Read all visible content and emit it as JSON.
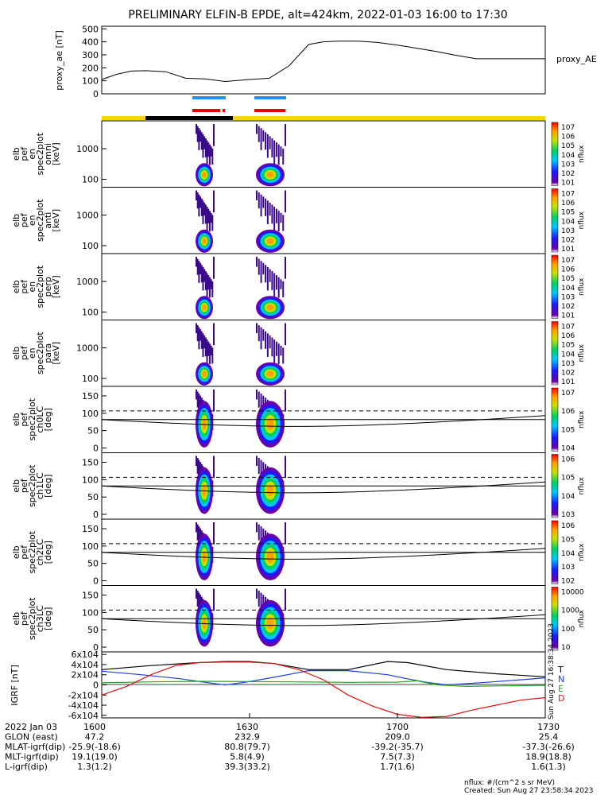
{
  "title": "PRELIMINARY ELFIN-B EPDE, alt=424km, 2022-01-03 16:00 to 17:30",
  "colors": {
    "bar_blue": "#1e90ff",
    "bar_red": "#ee0000",
    "sun_yellow": "#ffd400",
    "shadow_black": "#000000",
    "n_blue": "#1f3fd8",
    "e_green": "#22aa22",
    "d_red": "#dd1111",
    "t_black": "#000000"
  },
  "chart_data": [
    {
      "type": "line",
      "name": "proxy_ae",
      "ylabel": "proxy_ae [nT]",
      "legend": "proxy_AE",
      "yticks": [
        "500",
        "400",
        "300",
        "200",
        "100",
        "0"
      ],
      "ylim": [
        0,
        520
      ],
      "xlim_min": [
        0,
        90
      ],
      "x": [
        0,
        3,
        6,
        9,
        13,
        17,
        21,
        25,
        30,
        34,
        38,
        42,
        45,
        48,
        52,
        56,
        60,
        64,
        68,
        72,
        76,
        80,
        84,
        88,
        90
      ],
      "y": [
        110,
        150,
        175,
        178,
        170,
        120,
        115,
        95,
        110,
        120,
        215,
        380,
        400,
        405,
        405,
        395,
        375,
        350,
        325,
        295,
        270,
        270,
        270,
        270,
        270
      ]
    },
    {
      "type": "heatmap",
      "name": "energy spectrograms",
      "panels": [
        {
          "label": "elb pef en spec2plot omni [keV]",
          "yticks": [
            "1000",
            "100"
          ],
          "cbar_ticks": [
            "10^7",
            "10^6",
            "10^5",
            "10^4",
            "10^3",
            "10^2",
            "10^1"
          ],
          "cbar_label": "nflux"
        },
        {
          "label": "elb pef en spec2plot anti [keV]",
          "yticks": [
            "1000",
            "100"
          ],
          "cbar_ticks": [
            "10^7",
            "10^6",
            "10^5",
            "10^4",
            "10^3",
            "10^2",
            "10^1"
          ],
          "cbar_label": "nflux"
        },
        {
          "label": "elb pef en spec2plot perp [keV]",
          "yticks": [
            "1000",
            "100"
          ],
          "cbar_ticks": [
            "10^7",
            "10^6",
            "10^5",
            "10^4",
            "10^3",
            "10^2",
            "10^1"
          ],
          "cbar_label": "nflux"
        },
        {
          "label": "elb pef en spec2plot para [keV]",
          "yticks": [
            "1000",
            "100"
          ],
          "cbar_ticks": [
            "10^7",
            "10^6",
            "10^5",
            "10^4",
            "10^3",
            "10^2",
            "10^1"
          ],
          "cbar_label": "nflux"
        }
      ]
    },
    {
      "type": "heatmap",
      "name": "pitch-angle spectrograms",
      "panels": [
        {
          "label": "elb pef spec2plot ch0LC [deg]",
          "yticks": [
            "150",
            "100",
            "50",
            "0"
          ],
          "cbar_ticks": [
            "10^7",
            "10^6",
            "10^5",
            "10^4"
          ],
          "cbar_label": "nflux"
        },
        {
          "label": "elb pef spec2plot ch1LC [deg]",
          "yticks": [
            "150",
            "100",
            "50",
            "0"
          ],
          "cbar_ticks": [
            "10^6",
            "10^5",
            "10^4",
            "10^3"
          ],
          "cbar_label": "nflux"
        },
        {
          "label": "elb pef spec2plot ch2LC [deg]",
          "yticks": [
            "150",
            "100",
            "50",
            "0"
          ],
          "cbar_ticks": [
            "10^6",
            "10^5",
            "10^4",
            "10^3",
            "10^2"
          ],
          "cbar_label": "nflux"
        },
        {
          "label": "elb pef spec2plot ch3LC [deg]",
          "yticks": [
            "150",
            "100",
            "50",
            "0"
          ],
          "cbar_ticks": [
            "10000",
            "1000",
            "100",
            "10"
          ],
          "cbar_label": "nflux"
        }
      ]
    },
    {
      "type": "line",
      "name": "IGRF",
      "ylabel": "IGRF [nT]",
      "yticks": [
        "6x10^4",
        "4x10^4",
        "2x10^4",
        "0",
        "-2x10^4",
        "-4x10^4",
        "-6x10^4"
      ],
      "ylim": [
        -65000,
        65000
      ],
      "series": [
        {
          "name": "T",
          "color": "#000000",
          "x": [
            0,
            10,
            20,
            25,
            30,
            35,
            42,
            50,
            58,
            62,
            70,
            80,
            90
          ],
          "y": [
            30000,
            38000,
            44000,
            46000,
            46000,
            42000,
            30000,
            30000,
            46000,
            44000,
            30000,
            22000,
            16000
          ]
        },
        {
          "name": "N",
          "color": "#1f3fd8",
          "x": [
            0,
            8,
            16,
            21,
            25,
            29,
            35,
            42,
            50,
            58,
            62,
            66,
            70,
            78,
            85,
            90
          ],
          "y": [
            27000,
            20000,
            12000,
            5000,
            0,
            5000,
            15000,
            28000,
            28000,
            20000,
            12000,
            5000,
            0,
            5000,
            10000,
            14000
          ]
        },
        {
          "name": "E",
          "color": "#22aa22",
          "x": [
            0,
            10,
            20,
            30,
            40,
            50,
            60,
            64,
            68,
            74,
            80,
            90
          ],
          "y": [
            4000,
            6000,
            7000,
            6500,
            6000,
            5000,
            5500,
            8000,
            0,
            -3000,
            -2000,
            -1000
          ]
        },
        {
          "name": "D",
          "color": "#dd1111",
          "x": [
            0,
            5,
            10,
            15,
            20,
            25,
            30,
            35,
            40,
            45,
            50,
            55,
            60,
            65,
            70,
            75,
            80,
            85,
            90
          ],
          "y": [
            -20000,
            -3000,
            20000,
            38000,
            44000,
            45000,
            45000,
            42000,
            30000,
            10000,
            -20000,
            -42000,
            -58000,
            -64000,
            -62000,
            -50000,
            -40000,
            -30000,
            -25000
          ]
        }
      ],
      "legend": [
        "T",
        "N",
        "E",
        "D"
      ]
    }
  ],
  "xaxis": {
    "rows": [
      {
        "label": "2022 Jan 03",
        "values": [
          "1600",
          "1630",
          "1700",
          "1730"
        ]
      },
      {
        "label": "GLON (east)",
        "values": [
          "47.2",
          "232.9",
          "209.0",
          "25.4"
        ]
      },
      {
        "label": "MLAT-igrf(dip)",
        "values": [
          "-25.9(-18.6)",
          "80.8(79.7)",
          "-39.2(-35.7)",
          "-37.3(-26.6)"
        ]
      },
      {
        "label": "MLT-igrf(dip)",
        "values": [
          "19.1(19.0)",
          "5.8(4.9)",
          "7.5(7.3)",
          "18.9(18.8)"
        ]
      },
      {
        "label": "L-igrf(dip)",
        "values": [
          "1.3(1.2)",
          "39.3(33.2)",
          "1.7(1.6)",
          "1.6(1.3)"
        ]
      }
    ]
  },
  "footer": {
    "units": "nflux: #/(cm^2 s sr MeV)",
    "created": "Created: Sun Aug 27 23:58:34 2023",
    "stamp": "Sun Aug 27 16:38:34 2023"
  },
  "markers": {
    "shadow_label": "",
    "proxy_legend": "proxy_AE"
  }
}
